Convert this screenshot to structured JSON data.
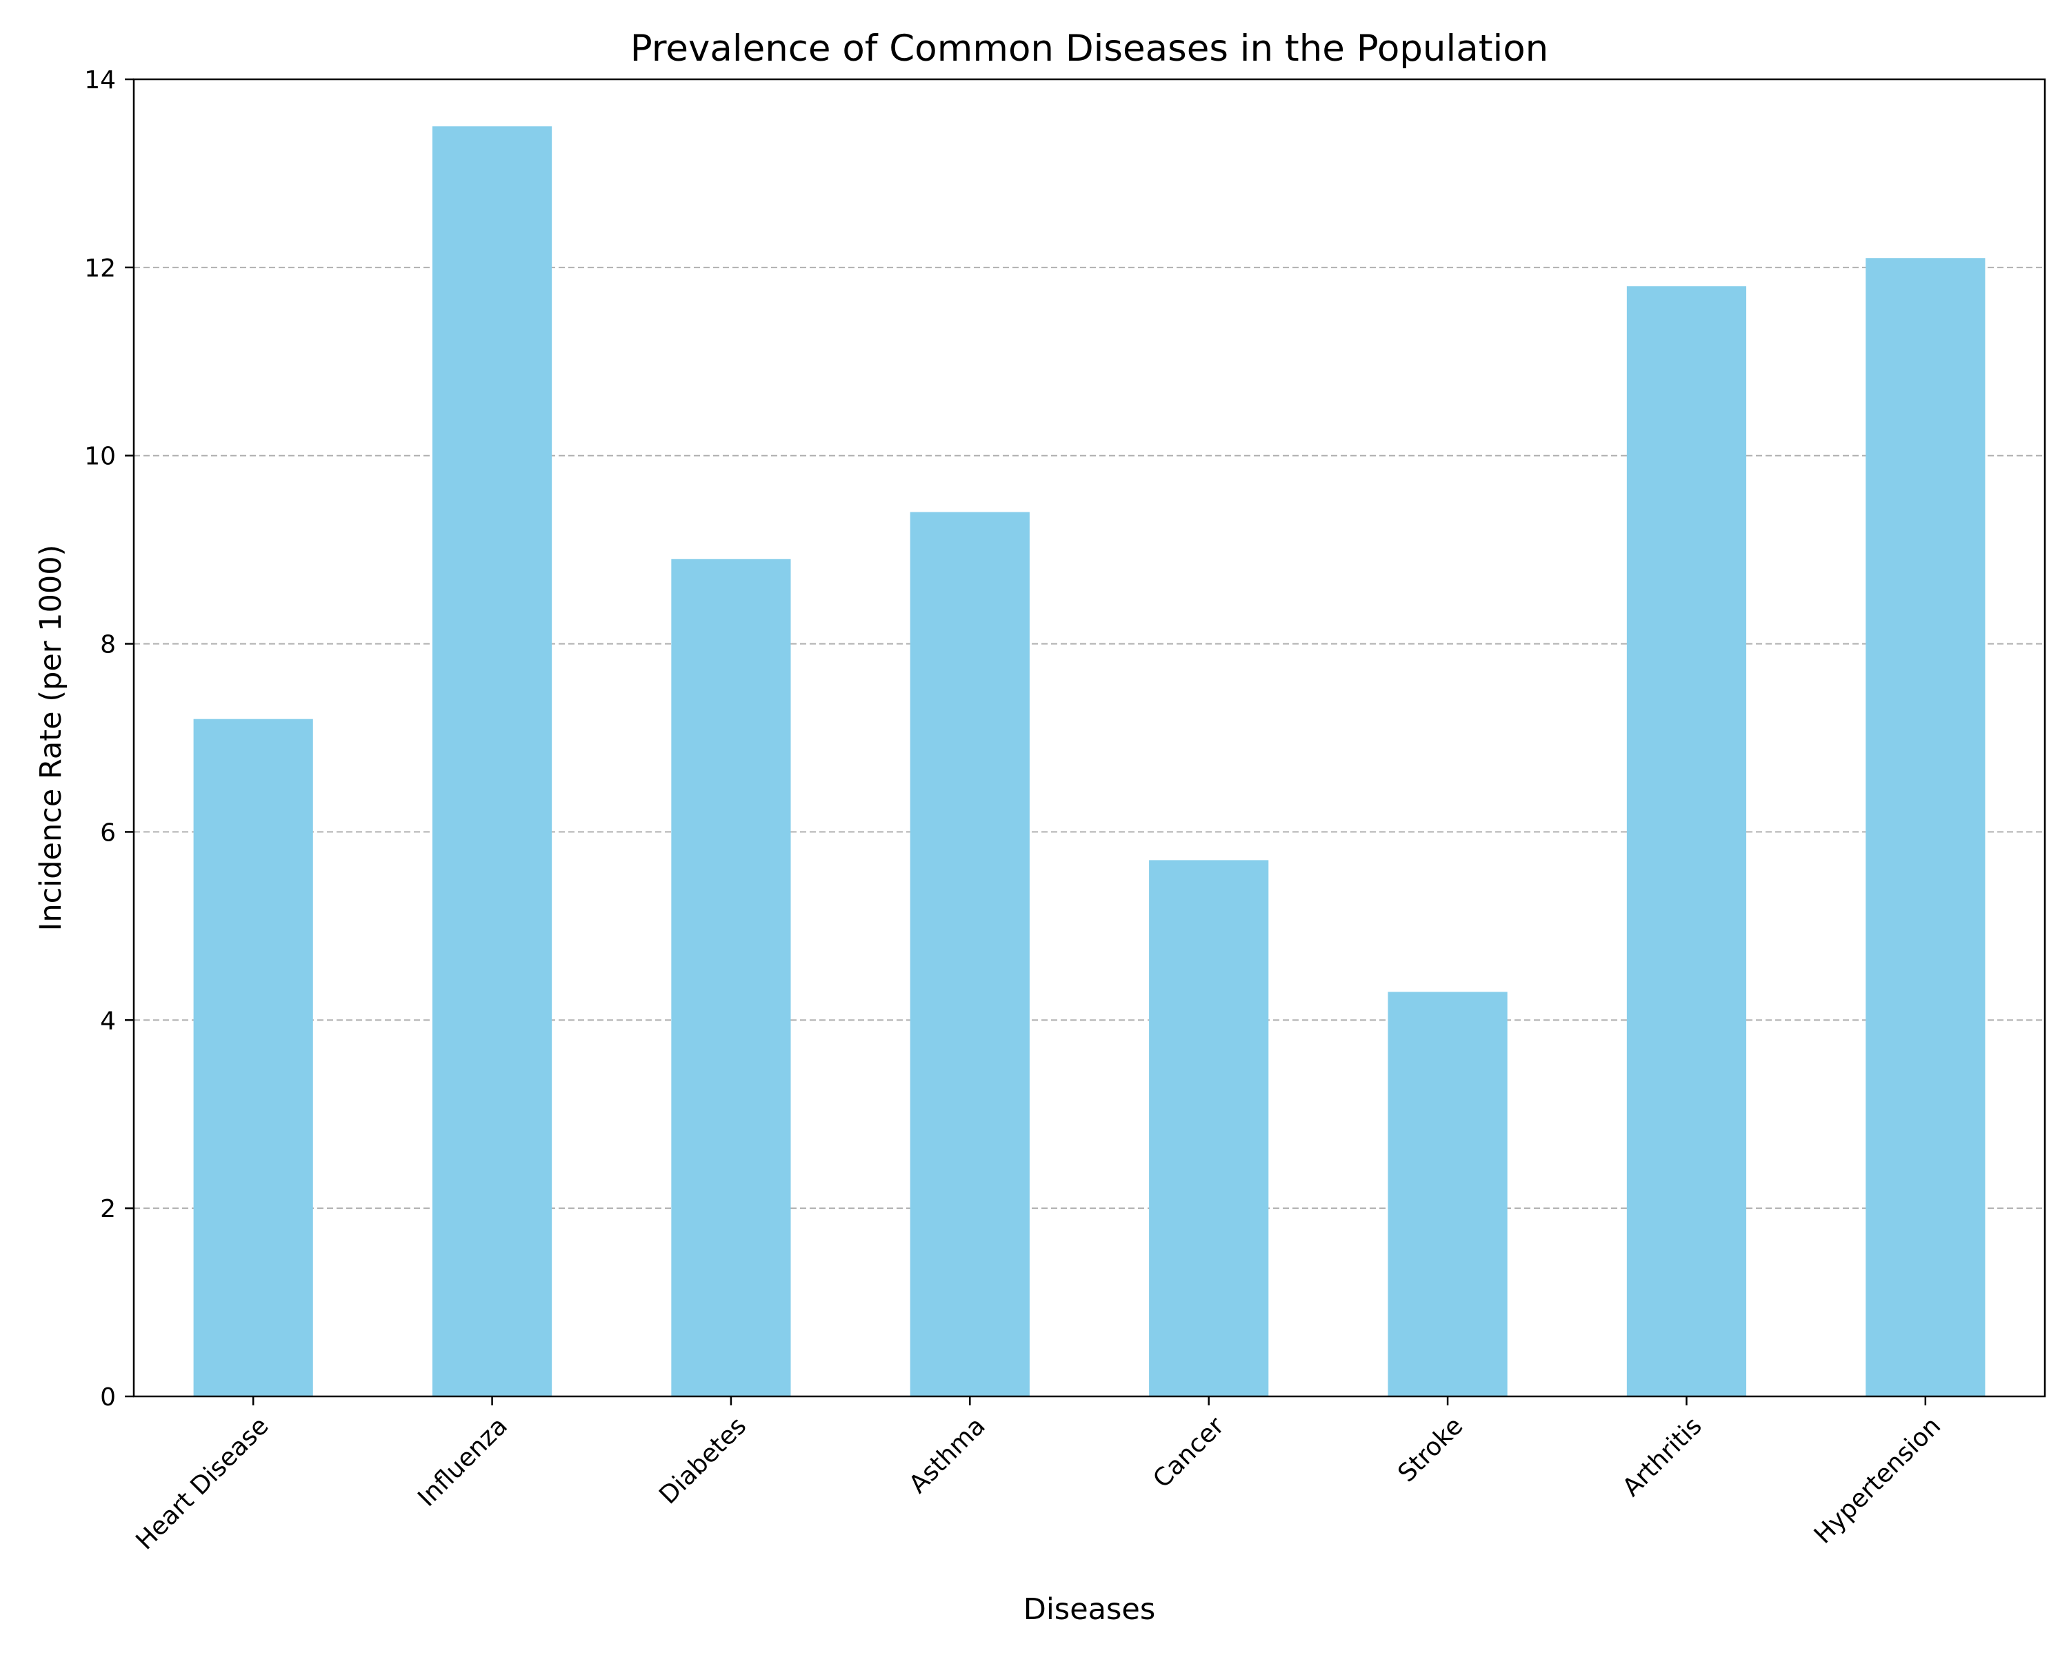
{
  "chart_data": {
    "type": "bar",
    "title": "Prevalence of Common Diseases in the Population",
    "xlabel": "Diseases",
    "ylabel": "Incidence Rate (per 1000)",
    "categories": [
      "Heart Disease",
      "Influenza",
      "Diabetes",
      "Asthma",
      "Cancer",
      "Stroke",
      "Arthritis",
      "Hypertension"
    ],
    "values": [
      7.2,
      13.5,
      8.9,
      9.4,
      5.7,
      4.3,
      11.8,
      12.1
    ],
    "ylim": [
      0,
      14
    ],
    "yticks": [
      0,
      2,
      4,
      6,
      8,
      10,
      12,
      14
    ],
    "ytick_labels": [
      "0",
      "2",
      "4",
      "6",
      "8",
      "10",
      "12",
      "14"
    ],
    "grid": "y-dashed",
    "legend": "none",
    "colors": {
      "bar": "#87ceeb",
      "grid": "#b0b0b0",
      "axis": "#000000"
    }
  }
}
